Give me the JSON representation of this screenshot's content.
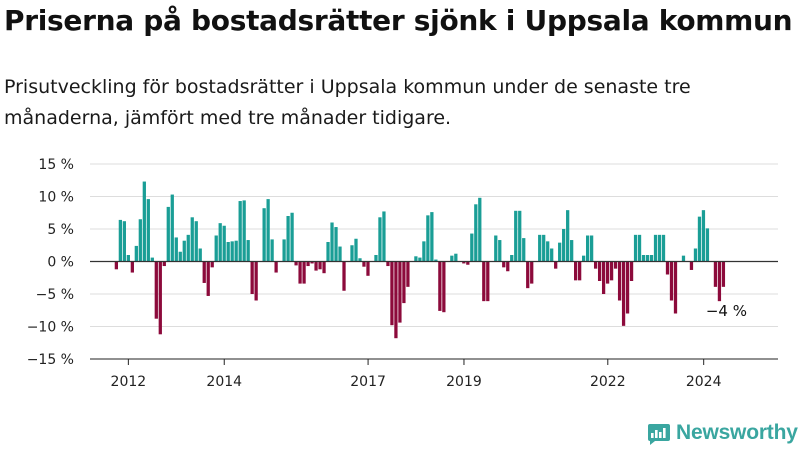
{
  "header": {
    "title": "Priserna på bostadsrätter sjönk i Uppsala kommun",
    "subtitle": "Prisutveckling för bostadsrätter i Uppsala kommun under de senaste tre månaderna, jämfört med tre månader tidigare."
  },
  "brand": {
    "name": "Newsworthy",
    "icon": "newsworthy-logo-icon"
  },
  "colors": {
    "positive": "#1a9e96",
    "negative": "#8c0a3b",
    "zero_line": "#333333",
    "grid": "#dddddd"
  },
  "chart_data": {
    "type": "bar",
    "title": "",
    "xlabel": "",
    "ylabel": "",
    "ylim": [
      -15,
      15
    ],
    "y_ticks": [
      15,
      10,
      5,
      0,
      -5,
      -10,
      -15
    ],
    "y_tick_labels": [
      "15 %",
      "10 %",
      "5 %",
      "0 %",
      "−5 %",
      "−10 %",
      "−15 %"
    ],
    "x_ticks": [
      2012,
      2014,
      2017,
      2019,
      2022,
      2024
    ],
    "x_tick_labels": [
      "2012",
      "2014",
      "2017",
      "2019",
      "2022",
      "2024"
    ],
    "x_start": 2011.75,
    "x_step": 0.0833,
    "grid": true,
    "values": [
      -1.2,
      6.4,
      6.2,
      1.0,
      -1.7,
      2.4,
      6.5,
      12.3,
      9.6,
      0.6,
      -8.8,
      -11.2,
      -0.7,
      8.4,
      10.3,
      3.7,
      1.5,
      3.2,
      4.1,
      6.8,
      6.2,
      2.0,
      -3.3,
      -5.3,
      -0.9,
      4.0,
      5.9,
      5.5,
      3.0,
      3.1,
      3.2,
      9.3,
      9.4,
      3.3,
      -5.0,
      -6.0,
      0.0,
      8.2,
      9.6,
      3.4,
      -1.7,
      0.0,
      3.4,
      7.0,
      7.5,
      -0.6,
      -3.4,
      -3.4,
      -0.7,
      -0.3,
      -1.4,
      -1.2,
      -1.8,
      3.0,
      6.0,
      5.3,
      2.3,
      -4.5,
      0.0,
      2.5,
      3.5,
      0.5,
      -0.8,
      -2.2,
      0.0,
      1.0,
      6.8,
      7.7,
      -0.7,
      -9.8,
      -11.8,
      -9.4,
      -6.4,
      -3.9,
      0.0,
      0.8,
      0.6,
      3.1,
      7.1,
      7.6,
      0.3,
      -7.6,
      -7.8,
      0.0,
      0.9,
      1.2,
      0.0,
      -0.3,
      -0.5,
      4.3,
      8.8,
      9.8,
      -6.1,
      -6.1,
      0.0,
      4.0,
      3.3,
      -0.9,
      -1.5,
      1.0,
      7.8,
      7.8,
      3.6,
      -4.1,
      -3.4,
      0.0,
      4.1,
      4.1,
      3.1,
      2.0,
      -1.1,
      2.9,
      5.0,
      7.9,
      3.3,
      -2.9,
      -2.9,
      0.9,
      4.0,
      4.0,
      -1.1,
      -3.0,
      -5.0,
      -3.4,
      -2.9,
      -1.1,
      -6.0,
      -9.9,
      -8.0,
      -3.0,
      4.1,
      4.1,
      1.0,
      1.0,
      1.0,
      4.1,
      4.1,
      4.1,
      -2.0,
      -6.0,
      -8.0,
      0.0,
      0.9,
      0.0,
      -1.3,
      2.0,
      6.9,
      7.9,
      5.1,
      0.0,
      -3.9,
      -6.1,
      -3.9
    ],
    "annotations": [
      {
        "text": "−4 %"
      }
    ]
  }
}
